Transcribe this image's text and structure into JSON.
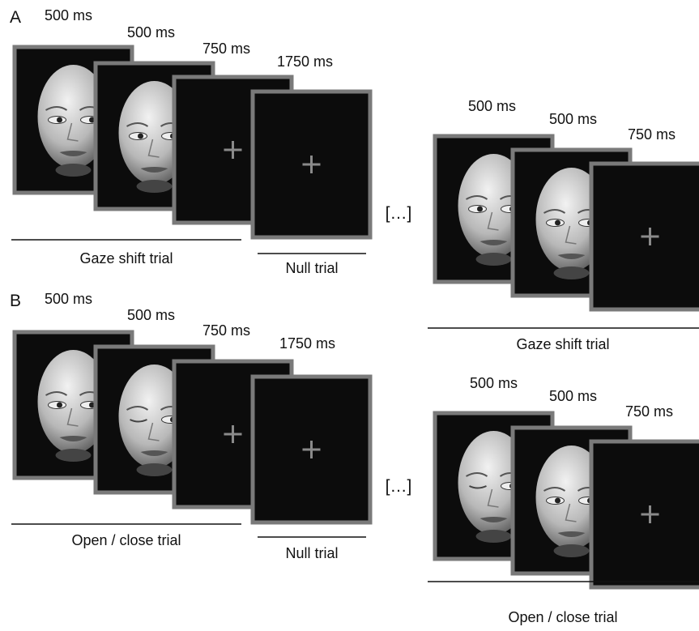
{
  "panels": [
    {
      "label": "A",
      "left_timings": [
        "500 ms",
        "500 ms",
        "750 ms",
        "1750 ms"
      ],
      "left_trial": "Gaze shift  trial",
      "null_trial": "Null trial",
      "ellipsis": "[…]",
      "right_timings": [
        "500 ms",
        "500 ms",
        "750 ms"
      ],
      "right_trial": "Gaze shift trial"
    },
    {
      "label": "B",
      "left_timings": [
        "500 ms",
        "500 ms",
        "750 ms",
        "1750 ms"
      ],
      "left_trial": "Open / close trial",
      "null_trial": "Null trial",
      "ellipsis": "[…]",
      "right_timings": [
        "500 ms",
        "500 ms",
        "750 ms"
      ],
      "right_trial": "Open / close trial"
    }
  ]
}
